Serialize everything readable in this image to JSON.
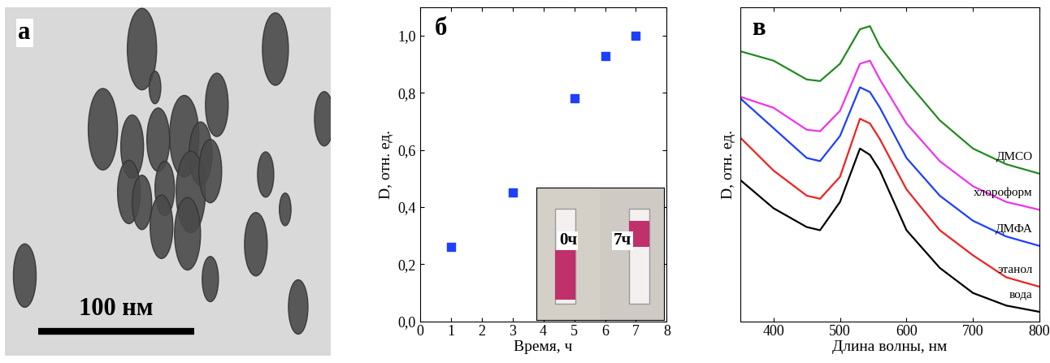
{
  "chart_data": [
    {
      "type": "image",
      "panel": "а",
      "scale_bar": "100 нм"
    },
    {
      "type": "scatter",
      "panel": "б",
      "x_label": "Время, ч",
      "y_label": "D, отн. ед.",
      "x": [
        1,
        3,
        5,
        6,
        7
      ],
      "values": [
        0.26,
        0.45,
        0.78,
        0.93,
        1.0
      ],
      "color": "#1f3fff",
      "marker": "square",
      "xlim": [
        0,
        8
      ],
      "xticks": [
        0,
        1,
        2,
        3,
        4,
        5,
        6,
        7,
        8
      ],
      "ylim": [
        0,
        1.1
      ],
      "yticks": [
        {
          "value": 0.0,
          "label": "0,0"
        },
        {
          "value": 0.2,
          "label": "0,2"
        },
        {
          "value": 0.4,
          "label": "0,4"
        },
        {
          "value": 0.6,
          "label": "0,6"
        },
        {
          "value": 0.8,
          "label": "0,8"
        },
        {
          "value": 1.0,
          "label": "1,0"
        }
      ],
      "inset_labels": [
        "0ч",
        "7ч"
      ]
    },
    {
      "type": "line",
      "panel": "в",
      "x_label": "Длина волны, нм",
      "y_label": "D, отн. ед.",
      "x": [
        350,
        400,
        450,
        470,
        500,
        530,
        545,
        560,
        600,
        650,
        700,
        750,
        800
      ],
      "xlim": [
        350,
        800
      ],
      "xticks": [
        400,
        500,
        600,
        700,
        800
      ],
      "ylim": [
        0,
        1
      ],
      "tick_labels": "x",
      "series": [
        {
          "name": "вода",
          "color": "#000000",
          "values": [
            0.45,
            0.36,
            0.3,
            0.29,
            0.38,
            0.55,
            0.53,
            0.48,
            0.29,
            0.17,
            0.09,
            0.05,
            0.03
          ]
        },
        {
          "name": "этанол",
          "color": "#ee2222",
          "values": [
            0.585,
            0.48,
            0.4,
            0.39,
            0.46,
            0.645,
            0.63,
            0.58,
            0.42,
            0.29,
            0.21,
            0.14,
            0.11
          ]
        },
        {
          "name": "ДМФА",
          "color": "#1f3fff",
          "values": [
            0.71,
            0.615,
            0.52,
            0.51,
            0.59,
            0.745,
            0.73,
            0.68,
            0.52,
            0.4,
            0.32,
            0.27,
            0.24
          ]
        },
        {
          "name": "хлороформ",
          "color": "#ee33ee",
          "values": [
            0.715,
            0.68,
            0.61,
            0.605,
            0.67,
            0.82,
            0.83,
            0.77,
            0.63,
            0.51,
            0.43,
            0.38,
            0.355
          ]
        },
        {
          "name": "ДМСО",
          "color": "#228b22",
          "values": [
            0.86,
            0.83,
            0.77,
            0.765,
            0.82,
            0.93,
            0.94,
            0.875,
            0.765,
            0.64,
            0.55,
            0.5,
            0.47
          ]
        }
      ]
    }
  ]
}
